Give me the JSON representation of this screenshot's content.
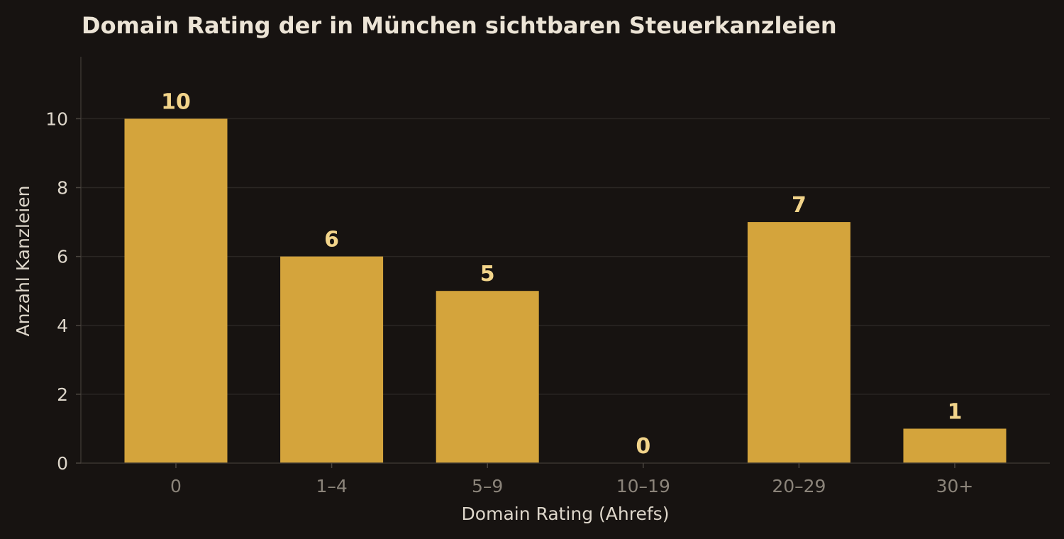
{
  "chart_data": {
    "type": "bar",
    "title": "Domain Rating der in München sichtbaren Steuerkanzleien",
    "xlabel": "Domain Rating (Ahrefs)",
    "ylabel": "Anzahl Kanzleien",
    "categories": [
      "0",
      "1–4",
      "5–9",
      "10–19",
      "20–29",
      "30+"
    ],
    "values": [
      10,
      6,
      5,
      0,
      7,
      1
    ],
    "ylim": [
      0,
      11.8
    ],
    "yticks": [
      0,
      2,
      4,
      6,
      8,
      10
    ],
    "grid": "horizontal",
    "bar_color": "#d4a43c",
    "label_color": "#f2d48a",
    "background": "#171311"
  }
}
